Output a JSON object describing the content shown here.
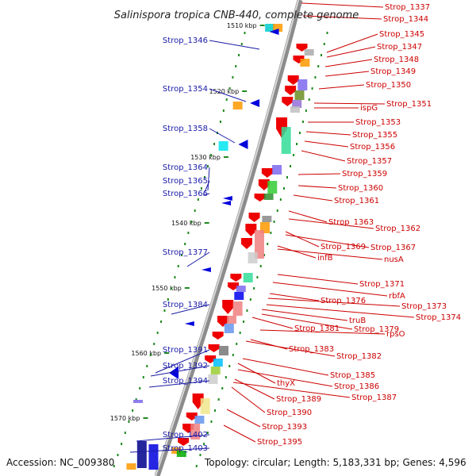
{
  "title": "Salinispora tropica CNB-440, complete genome",
  "accession": "Accession: NC_009380",
  "topology": "Topology: circular; Length: 5,183,331 bp; Genes: 4,596",
  "colors": {
    "left_label": "#1a1aa6",
    "right_label": "#cc0000",
    "backbone": "#8c8c8c",
    "forward_gene": "#ee0000",
    "reverse_gene": "#0000dd",
    "tick": "#1f8a1f"
  },
  "ticks": [
    {
      "label": "1510 kbp"
    },
    {
      "label": "1520 kbp"
    },
    {
      "label": "1530 kbp"
    },
    {
      "label": "1540 kbp"
    },
    {
      "label": "1550 kbp"
    },
    {
      "label": "1560 kbp"
    },
    {
      "label": "1570 kbp"
    }
  ],
  "left_labels": [
    "Strop_1346",
    "Strop_1354",
    "Strop_1358",
    "Strop_1364",
    "Strop_1365",
    "Strop_1366",
    "Strop_1377",
    "Strop_1384",
    "Strop_1391",
    "Strop_1392",
    "Strop_1394",
    "Strop_1402",
    "Strop_1403"
  ],
  "right_labels": [
    "Strop_1337",
    "Strop_1344",
    "Strop_1345",
    "Strop_1347",
    "Strop_1348",
    "Strop_1349",
    "Strop_1350",
    "ispG",
    "Strop_1351",
    "Strop_1353",
    "Strop_1355",
    "Strop_1356",
    "Strop_1357",
    "Strop_1359",
    "Strop_1360",
    "Strop_1361",
    "Strop_1363",
    "Strop_1362",
    "Strop_1369",
    "Strop_1367",
    "infB",
    "nusA",
    "Strop_1371",
    "rbfA",
    "Strop_1376",
    "Strop_1373",
    "Strop_1374",
    "truB",
    "Strop_1379",
    "Strop_1381",
    "rpsO",
    "Strop_1383",
    "Strop_1382",
    "Strop_1385",
    "thyX",
    "Strop_1386",
    "Strop_1389",
    "Strop_1387",
    "Strop_1390",
    "Strop_1393",
    "Strop_1395"
  ]
}
